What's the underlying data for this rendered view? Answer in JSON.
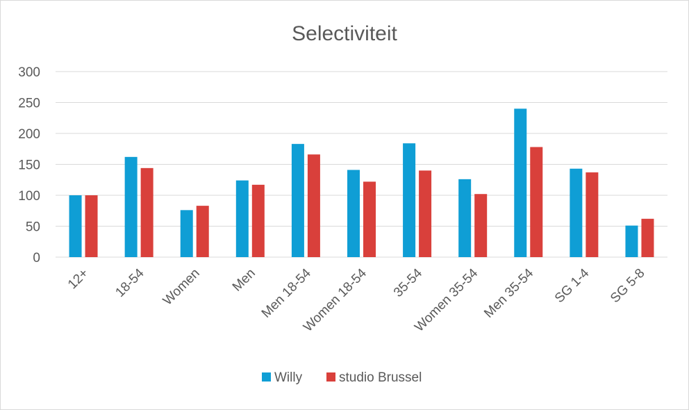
{
  "chart_data": {
    "type": "bar",
    "title": "Selectiviteit",
    "xlabel": "",
    "ylabel": "",
    "ylim": [
      0,
      300
    ],
    "yticks": [
      0,
      50,
      100,
      150,
      200,
      250,
      300
    ],
    "grid": true,
    "legend_position": "bottom",
    "categories": [
      "12+",
      "18-54",
      "Women",
      "Men",
      "Men 18-54",
      "Women 18-54",
      "35-54",
      "Women 35-54",
      "Men 35-54",
      "SG 1-4",
      "SG 5-8"
    ],
    "series": [
      {
        "name": "Willy",
        "color": "#0f9ed5",
        "values": [
          100,
          162,
          76,
          124,
          183,
          141,
          184,
          126,
          240,
          143,
          51
        ]
      },
      {
        "name": "studio Brussel",
        "color": "#d9403b",
        "values": [
          100,
          144,
          83,
          117,
          166,
          122,
          140,
          102,
          178,
          137,
          62
        ]
      }
    ]
  }
}
